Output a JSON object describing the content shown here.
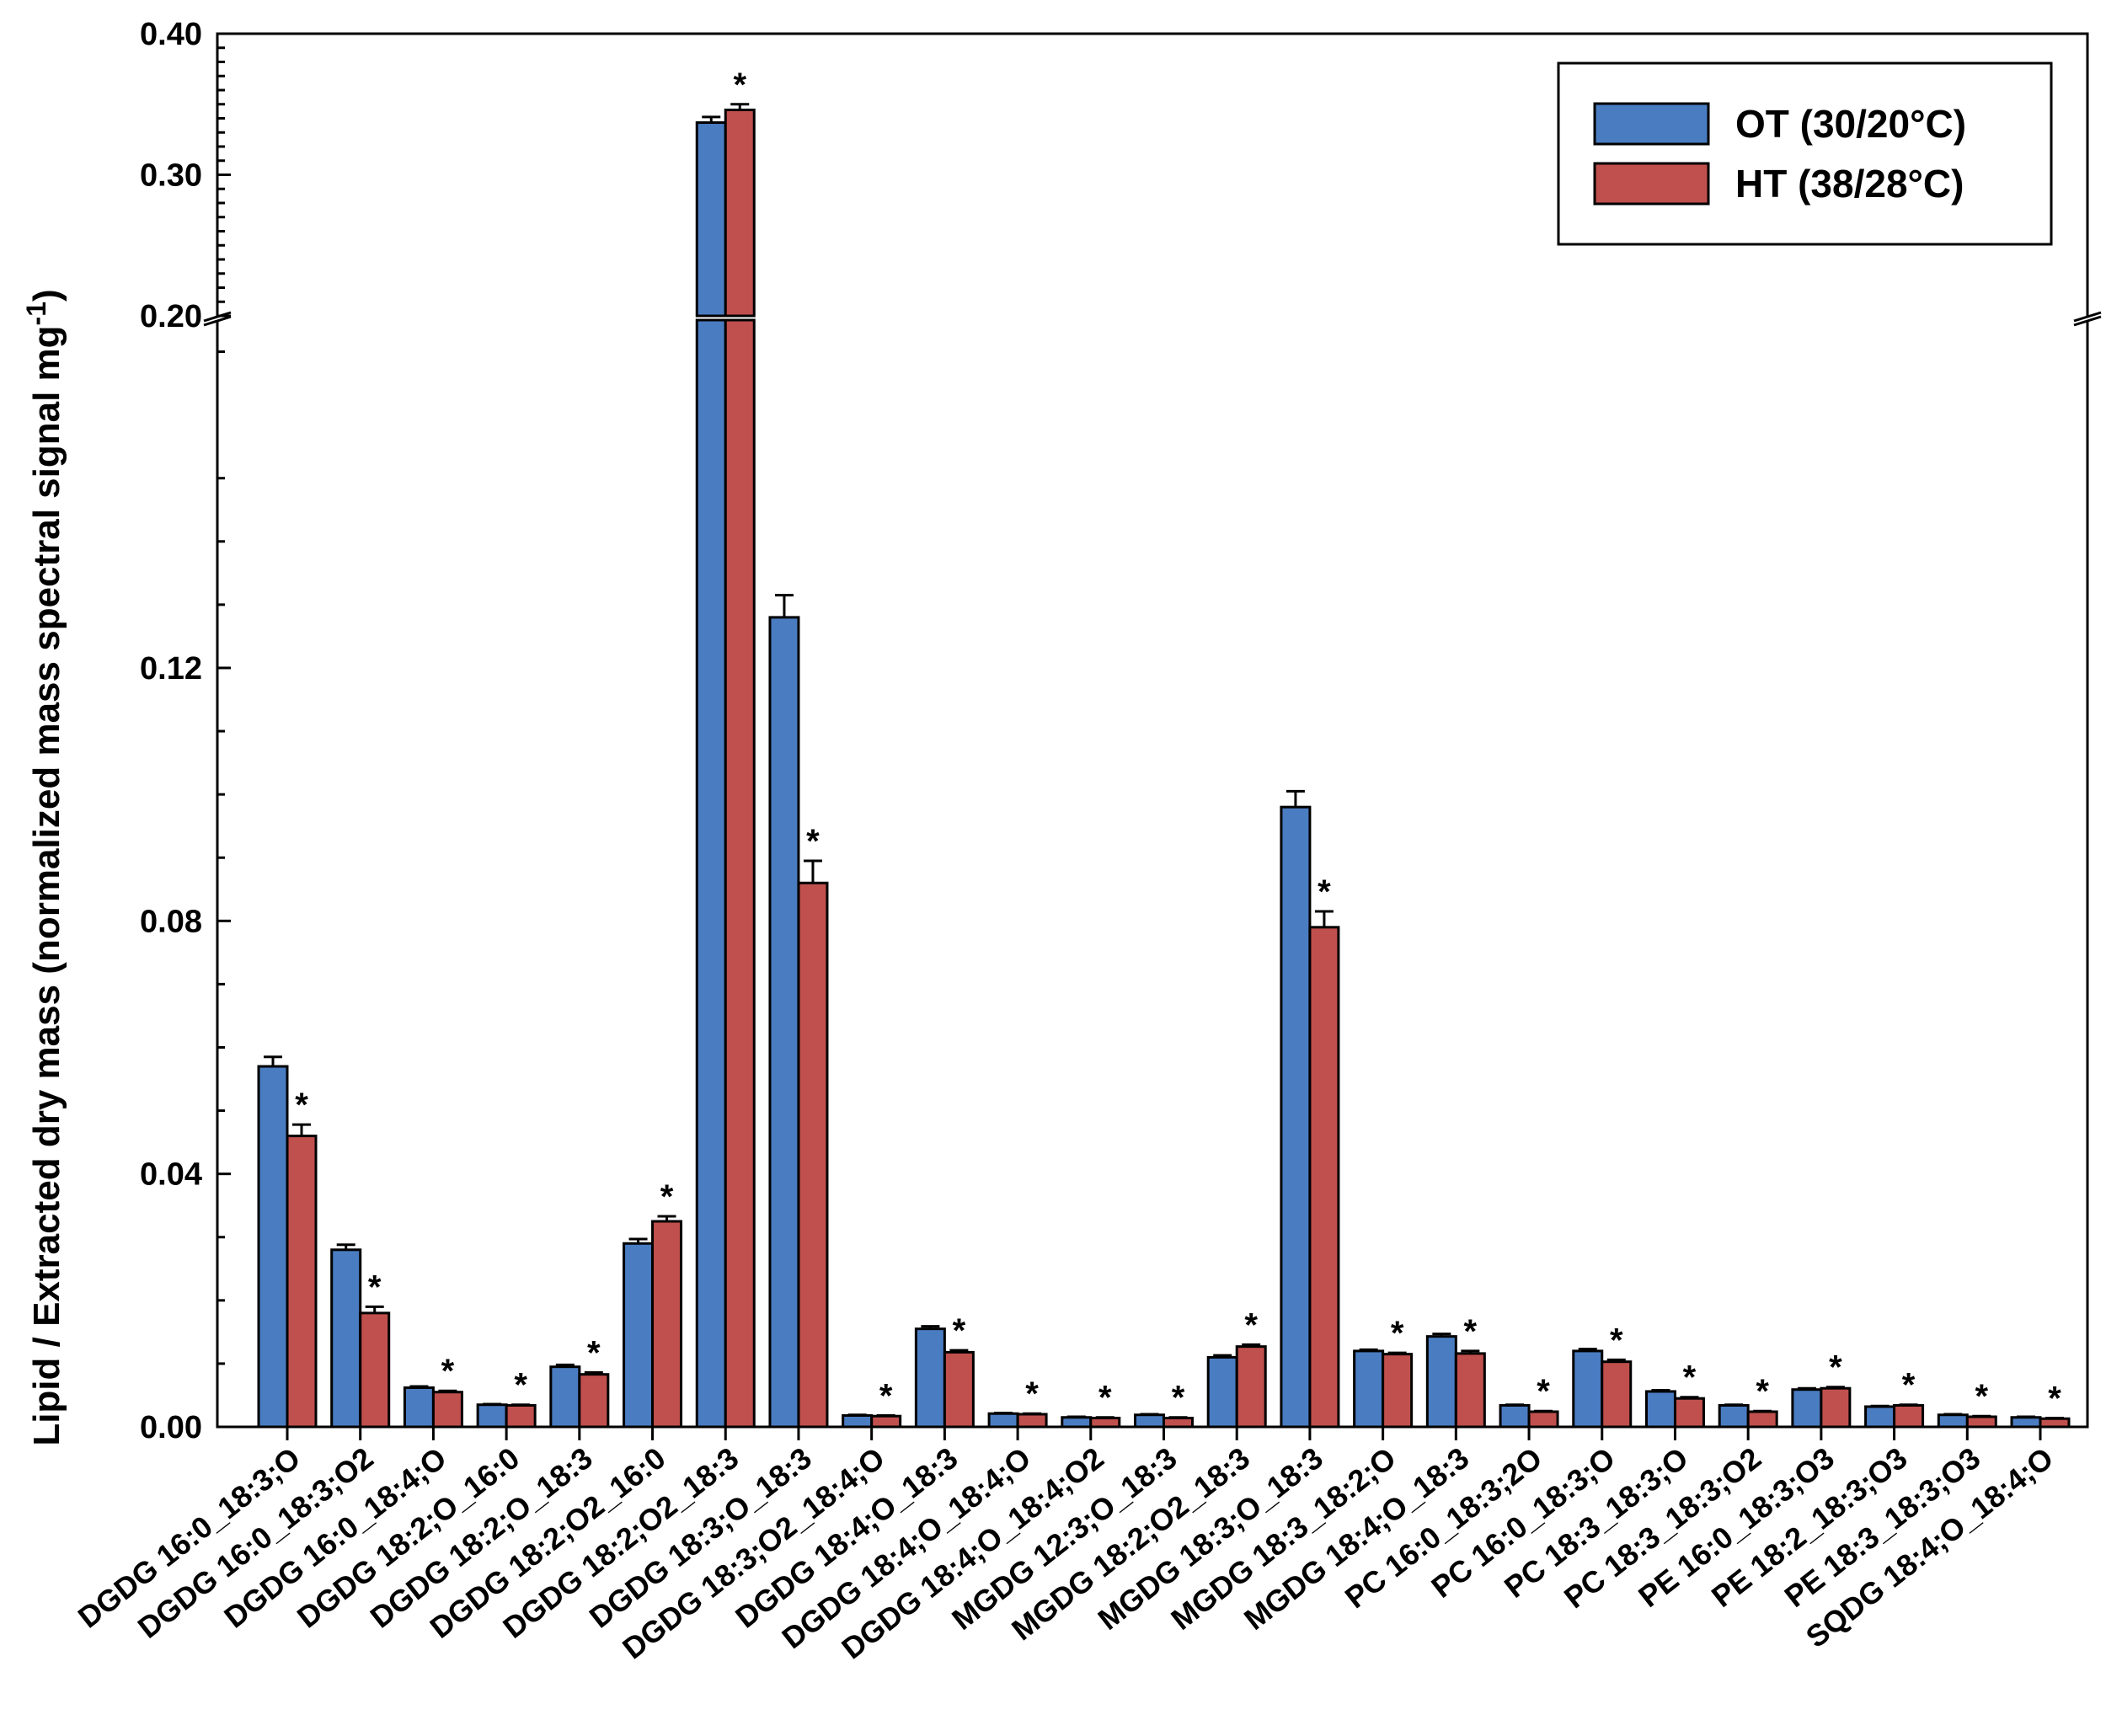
{
  "chart_data": {
    "type": "bar",
    "title": "",
    "xlabel": "",
    "ylabel": "Lipid / Extracted dry mass (normalized mass spectral signal mg",
    "ylabel_sup": "-1",
    "ylabel_close": ")",
    "axis_break": {
      "from": 0.175,
      "to": 0.2
    },
    "ylim_lower": [
      0,
      0.175
    ],
    "ylim_upper": [
      0.2,
      0.4
    ],
    "yticks_lower": [
      0,
      0.04,
      0.08,
      0.12
    ],
    "ytick_labels_lower": [
      "0.00",
      "0.04",
      "0.08",
      "0.12"
    ],
    "yticks_upper": [
      0.2,
      0.3,
      0.4
    ],
    "ytick_labels_upper": [
      "0.20",
      "0.30",
      "0.40"
    ],
    "legend_position": "top-right",
    "categories": [
      "DGDG 16:0_18:3;O",
      "DGDG 16:0_18:3;O2",
      "DGDG 16:0_18:4;O",
      "DGDG 18:2;O_16:0",
      "DGDG 18:2;O_18:3",
      "DGDG 18:2;O2_16:0",
      "DGDG 18:2;O2_18:3",
      "DGDG 18:3;O_18:3",
      "DGDG 18:3;O2_18:4;O",
      "DGDG 18:4;O_18:3",
      "DGDG 18:4;O_18:4;O",
      "DGDG 18:4;O_18:4;O2",
      "MGDG 12:3;O_18:3",
      "MGDG 18:2;O2_18:3",
      "MGDG 18:3;O_18:3",
      "MGDG 18:3_18:2;O",
      "MGDG 18:4;O_18:3",
      "PC 16:0_18:3;2O",
      "PC 16:0_18:3;O",
      "PC 18:3_18:3;O",
      "PC 18:3_18:3;O2",
      "PE 16:0_18:3;O3",
      "PE 18:2_18:3;O3",
      "PE 18:3_18:3;O3",
      "SQDG 18:4;O_18:4;O"
    ],
    "series": [
      {
        "name": "OT (30/20°C)",
        "color": "#4a7cc1",
        "values": [
          0.057,
          0.028,
          0.0062,
          0.0035,
          0.0095,
          0.029,
          0.337,
          0.128,
          0.0018,
          0.0155,
          0.0021,
          0.0015,
          0.0019,
          0.011,
          0.098,
          0.012,
          0.0143,
          0.0034,
          0.012,
          0.0056,
          0.0034,
          0.0059,
          0.0032,
          0.0019,
          0.0015
        ],
        "errors": [
          0.0015,
          0.0008,
          0.0002,
          0.0001,
          0.0003,
          0.0007,
          0.004,
          0.0035,
          0.0001,
          0.0004,
          0.0001,
          0.0001,
          0.0001,
          0.0003,
          0.0025,
          0.0002,
          0.0004,
          0.0001,
          0.0003,
          0.0002,
          0.0001,
          0.0002,
          0.0001,
          0.0001,
          0.0001
        ]
      },
      {
        "name": "HT (38/28°C)",
        "color": "#c0504d",
        "values": [
          0.046,
          0.018,
          0.0055,
          0.0034,
          0.0083,
          0.0325,
          0.346,
          0.086,
          0.0017,
          0.0118,
          0.002,
          0.0014,
          0.0014,
          0.0127,
          0.079,
          0.0115,
          0.0116,
          0.0024,
          0.0103,
          0.0045,
          0.0024,
          0.0061,
          0.0034,
          0.0016,
          0.0013
        ],
        "errors": [
          0.0018,
          0.001,
          0.0002,
          0.0001,
          0.0003,
          0.0008,
          0.004,
          0.0035,
          0.0001,
          0.0003,
          0.0001,
          0.0001,
          0.0001,
          0.0003,
          0.0025,
          0.0002,
          0.0004,
          0.0001,
          0.0003,
          0.0002,
          0.0001,
          0.0002,
          0.0001,
          0.0001,
          0.0001
        ]
      }
    ],
    "significant": [
      true,
      true,
      true,
      true,
      true,
      true,
      true,
      true,
      true,
      true,
      true,
      true,
      true,
      true,
      true,
      true,
      true,
      true,
      true,
      true,
      true,
      true,
      true,
      true,
      true
    ],
    "significance_marker": "*"
  }
}
